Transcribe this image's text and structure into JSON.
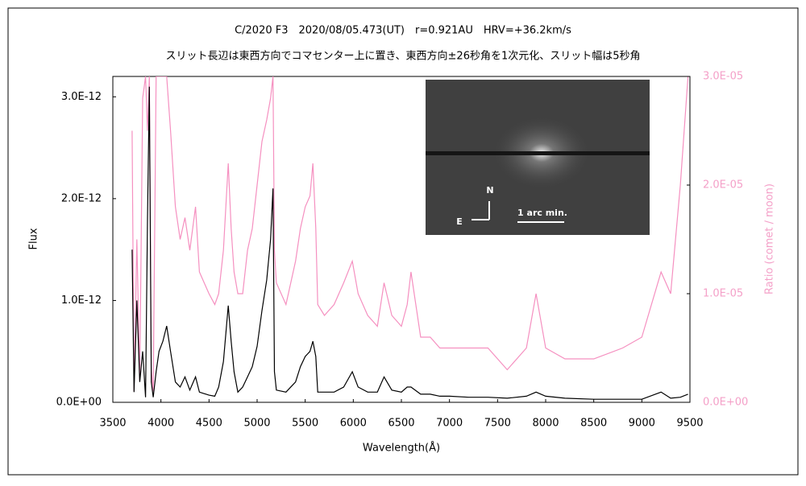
{
  "chart_data": {
    "type": "line",
    "title": "C/2020 F3　2020/08/05.473(UT)　r=0.921AU　HRV=+36.2km/s",
    "subtitle": "スリット長辺は東西方向でコマセンター上に置き、東西方向±26秒角を1次元化、スリット幅は5秒角",
    "xlabel": "Wavelength(Å)",
    "ylabel": "Flux",
    "y2label": "Ratio (comet / moon)",
    "annotations": [
      "N",
      "E",
      "1 arc min."
    ],
    "xlim": [
      3500,
      9500
    ],
    "xticks": [
      3500,
      4000,
      4500,
      5000,
      5500,
      6000,
      6500,
      7000,
      7500,
      8000,
      8500,
      9000,
      9500
    ],
    "ylim": [
      0,
      3.2e-12
    ],
    "yticks": [
      {
        "value": 0,
        "label": "0.0E+00"
      },
      {
        "value": 1e-12,
        "label": "1.0E-12"
      },
      {
        "value": 2e-12,
        "label": "2.0E-12"
      },
      {
        "value": 3e-12,
        "label": "3.0E-12"
      }
    ],
    "y2lim": [
      0,
      3e-05
    ],
    "y2ticks": [
      {
        "value": 0,
        "label": "0.0E+00"
      },
      {
        "value": 1e-05,
        "label": "1.0E-05"
      },
      {
        "value": 2e-05,
        "label": "2.0E-05"
      },
      {
        "value": 3e-05,
        "label": "3.0E-05"
      }
    ],
    "x": [
      3700,
      3720,
      3750,
      3780,
      3810,
      3840,
      3860,
      3880,
      3900,
      3920,
      3950,
      3980,
      4020,
      4060,
      4100,
      4150,
      4200,
      4250,
      4300,
      4360,
      4400,
      4500,
      4560,
      4600,
      4650,
      4700,
      4730,
      4760,
      4800,
      4850,
      4900,
      4950,
      5000,
      5050,
      5100,
      5140,
      5165,
      5180,
      5200,
      5300,
      5400,
      5450,
      5500,
      5550,
      5580,
      5610,
      5630,
      5700,
      5800,
      5900,
      5990,
      6050,
      6150,
      6250,
      6320,
      6400,
      6500,
      6560,
      6600,
      6700,
      6800,
      6900,
      7000,
      7200,
      7400,
      7600,
      7800,
      7900,
      8000,
      8200,
      8500,
      8800,
      9000,
      9200,
      9300,
      9400,
      9480
    ],
    "series": [
      {
        "name": "Flux",
        "color": "#000000",
        "values": [
          1.5e-12,
          1e-13,
          1e-12,
          2e-13,
          5e-13,
          5e-14,
          1.8e-12,
          3.1e-12,
          2e-13,
          5e-14,
          3e-13,
          5e-13,
          6e-13,
          7.5e-13,
          5e-13,
          2e-13,
          1.5e-13,
          2.5e-13,
          1.2e-13,
          2.5e-13,
          1e-13,
          7e-14,
          6e-14,
          1.5e-13,
          4e-13,
          9.5e-13,
          6e-13,
          3e-13,
          1e-13,
          1.5e-13,
          2.5e-13,
          3.5e-13,
          5.5e-13,
          9e-13,
          1.2e-12,
          1.6e-12,
          2.1e-12,
          3e-13,
          1.2e-13,
          1e-13,
          2e-13,
          3.5e-13,
          4.5e-13,
          5e-13,
          6e-13,
          4.5e-13,
          1e-13,
          1e-13,
          1e-13,
          1.5e-13,
          3e-13,
          1.5e-13,
          1e-13,
          1e-13,
          2.5e-13,
          1.2e-13,
          1e-13,
          1.5e-13,
          1.5e-13,
          8e-14,
          8e-14,
          6e-14,
          6e-14,
          5e-14,
          5e-14,
          4e-14,
          6e-14,
          1e-13,
          6e-14,
          4e-14,
          3e-14,
          3e-14,
          3e-14,
          1e-13,
          4e-14,
          5e-14,
          8e-14
        ]
      },
      {
        "name": "Ratio",
        "color": "#f590c0",
        "axis": "y2",
        "values": [
          2.5e-05,
          1e-06,
          1.5e-05,
          2e-06,
          2.8e-05,
          3e-05,
          2.5e-05,
          3e-05,
          3e-06,
          1e-06,
          3e-05,
          3e-05,
          3e-05,
          3e-05,
          2.5e-05,
          1.8e-05,
          1.5e-05,
          1.7e-05,
          1.4e-05,
          1.8e-05,
          1.2e-05,
          1e-05,
          9e-06,
          1e-05,
          1.4e-05,
          2.2e-05,
          1.6e-05,
          1.2e-05,
          1e-05,
          1e-05,
          1.4e-05,
          1.6e-05,
          2e-05,
          2.4e-05,
          2.6e-05,
          2.8e-05,
          3e-05,
          1.4e-05,
          1.1e-05,
          9e-06,
          1.3e-05,
          1.6e-05,
          1.8e-05,
          1.9e-05,
          2.2e-05,
          1.6e-05,
          9e-06,
          8e-06,
          9e-06,
          1.1e-05,
          1.3e-05,
          1e-05,
          8e-06,
          7e-06,
          1.1e-05,
          8e-06,
          7e-06,
          9e-06,
          1.2e-05,
          6e-06,
          6e-06,
          5e-06,
          5e-06,
          5e-06,
          5e-06,
          3e-06,
          5e-06,
          1e-05,
          5e-06,
          4e-06,
          4e-06,
          5e-06,
          6e-06,
          1.2e-05,
          1e-05,
          2e-05,
          3e-05
        ]
      }
    ]
  }
}
